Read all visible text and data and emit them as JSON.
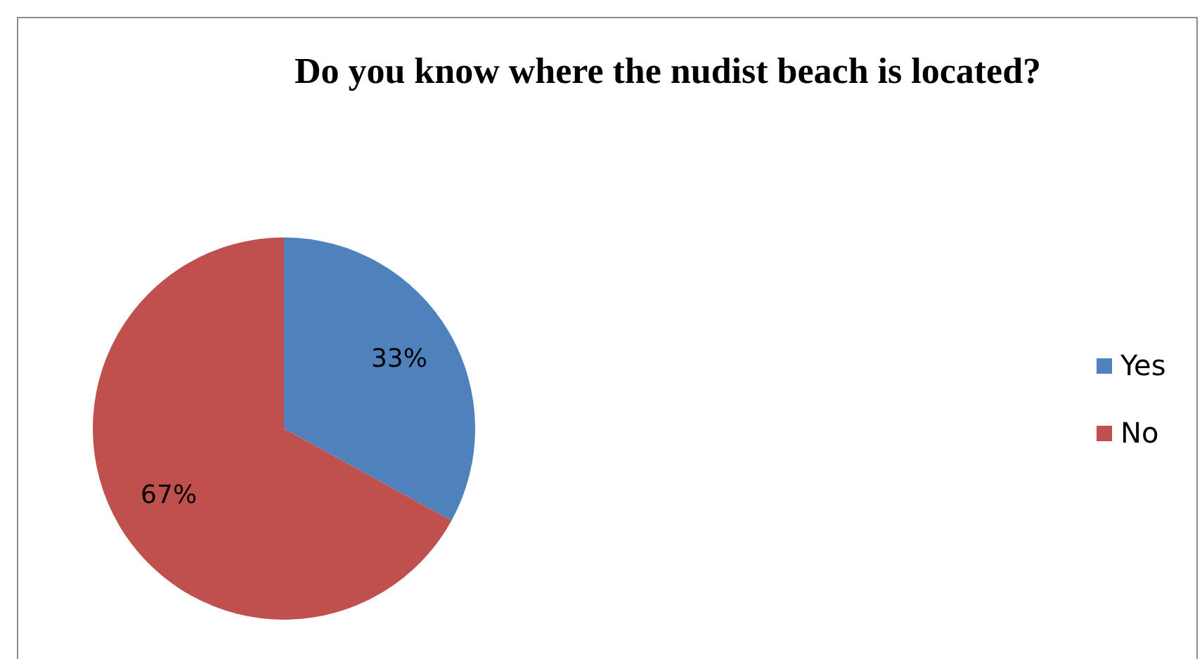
{
  "chart_data": {
    "type": "pie",
    "title": "Do you know where the nudist beach is located?",
    "categories": [
      "Yes",
      "No"
    ],
    "values": [
      33,
      67
    ],
    "colors": [
      "#4f81bd",
      "#c0504d"
    ],
    "value_labels": [
      "33%",
      "67%"
    ],
    "legend": "right"
  }
}
